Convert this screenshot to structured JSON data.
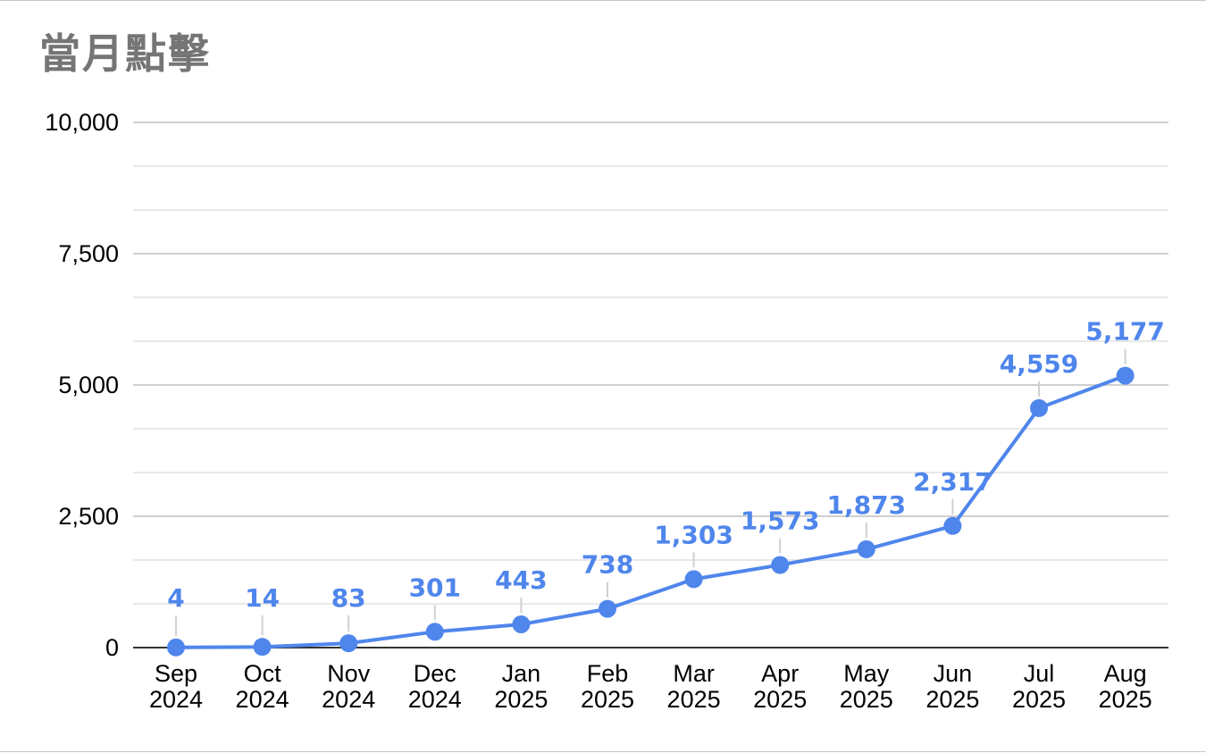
{
  "title": "當月點擊",
  "colors": {
    "series": "#4f86ec",
    "grid_major": "#cfcfcf",
    "grid_minor": "#e8e8e8",
    "axis": "#333333",
    "title": "#757575",
    "leader": "#d0d0d0"
  },
  "chart_data": {
    "type": "line",
    "title": "當月點擊",
    "categories": [
      [
        "Sep",
        "2024"
      ],
      [
        "Oct",
        "2024"
      ],
      [
        "Nov",
        "2024"
      ],
      [
        "Dec",
        "2024"
      ],
      [
        "Jan",
        "2025"
      ],
      [
        "Feb",
        "2025"
      ],
      [
        "Mar",
        "2025"
      ],
      [
        "Apr",
        "2025"
      ],
      [
        "May",
        "2025"
      ],
      [
        "Jun",
        "2025"
      ],
      [
        "Jul",
        "2025"
      ],
      [
        "Aug",
        "2025"
      ]
    ],
    "series": [
      {
        "values": [
          4,
          14,
          83,
          301,
          443,
          738,
          1303,
          1573,
          1873,
          2317,
          4559,
          5177
        ],
        "labels": [
          "4",
          "14",
          "83",
          "301",
          "443",
          "738",
          "1,303",
          "1,573",
          "1,873",
          "2,317",
          "4,559",
          "5,177"
        ]
      }
    ],
    "ylim": [
      0,
      10000
    ],
    "yticks": [
      0,
      2500,
      5000,
      7500,
      10000
    ],
    "ytick_labels": [
      "0",
      "2,500",
      "5,000",
      "7,500",
      "10,000"
    ],
    "minor_gridlines_per_interval": 2,
    "grid": true,
    "legend": "none",
    "markers": true,
    "data_labels": true
  }
}
